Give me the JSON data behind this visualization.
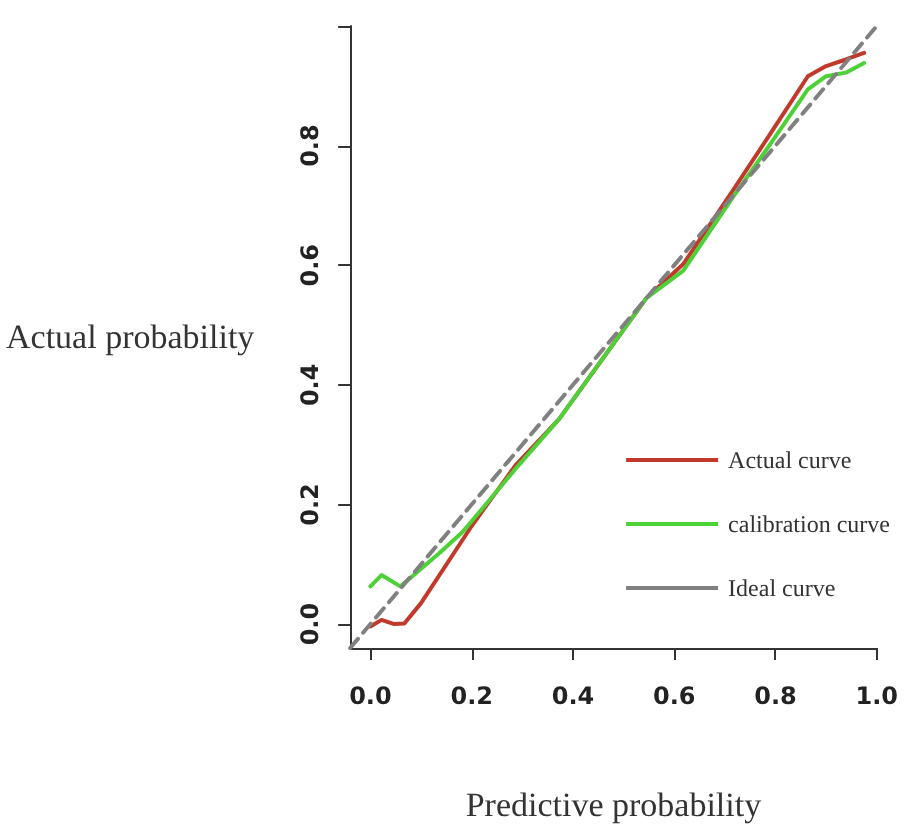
{
  "chart_data": {
    "type": "line",
    "xlabel": "Predictive probability",
    "ylabel": "Actual probability",
    "xlim": [
      -0.04,
      1.0
    ],
    "ylim": [
      -0.04,
      1.0
    ],
    "xticks": [
      {
        "value": 0,
        "label": "0.0"
      },
      {
        "value": 0.2,
        "label": "0.2"
      },
      {
        "value": 0.4,
        "label": "0.4"
      },
      {
        "value": 0.6,
        "label": "0.6"
      },
      {
        "value": 0.8,
        "label": "0.8"
      },
      {
        "value": 1,
        "label": "1.0"
      }
    ],
    "yticks": [
      {
        "value": 0,
        "label": "0.0"
      },
      {
        "value": 0.2,
        "label": "0.2"
      },
      {
        "value": 0.4,
        "label": "0.4"
      },
      {
        "value": 0.6,
        "label": "0.6"
      },
      {
        "value": 0.8,
        "label": "0.8"
      },
      {
        "value": 1,
        "label": null
      }
    ],
    "grid": false,
    "legend": "bottom right",
    "marker": "none",
    "series": [
      {
        "name": "Actual curve",
        "color": "#c0392b",
        "line_style": "solid",
        "x": [
          0.0,
          0.022,
          0.047,
          0.067,
          0.1,
          0.2,
          0.286,
          0.373,
          0.459,
          0.545,
          0.618,
          0.716,
          0.79,
          0.864,
          0.9,
          0.939,
          0.975
        ],
        "values": [
          -0.004,
          0.007,
          0.0,
          0.001,
          0.035,
          0.164,
          0.265,
          0.343,
          0.444,
          0.545,
          0.602,
          0.725,
          0.82,
          0.916,
          0.933,
          0.944,
          0.955
        ]
      },
      {
        "name": "calibration curve",
        "color": "#4cd137",
        "line_style": "solid",
        "x": [
          0.0,
          0.022,
          0.059,
          0.083,
          0.138,
          0.181,
          0.225,
          0.286,
          0.373,
          0.545,
          0.618,
          0.716,
          0.79,
          0.864,
          0.9,
          0.939,
          0.975
        ],
        "values": [
          0.063,
          0.082,
          0.063,
          0.08,
          0.12,
          0.153,
          0.197,
          0.259,
          0.343,
          0.545,
          0.591,
          0.714,
          0.803,
          0.894,
          0.916,
          0.922,
          0.938
        ]
      },
      {
        "name": "Ideal curve",
        "color": "#808080",
        "line_style": "dashed",
        "x": [
          -0.04,
          1.0
        ],
        "values": [
          -0.04,
          1.0
        ]
      }
    ]
  }
}
